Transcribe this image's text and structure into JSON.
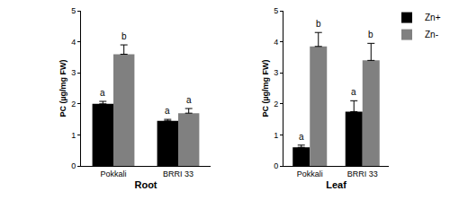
{
  "chart_data": [
    {
      "type": "bar",
      "x_label": "Root",
      "y_label": "PC (µg/mg FW)",
      "categories": [
        "Pokkali",
        "BRRI 33"
      ],
      "series": [
        {
          "name": "Zn+",
          "color": "#000000",
          "values": [
            2.0,
            1.45
          ],
          "errors": [
            0.08,
            0.05
          ],
          "letters": [
            "a",
            "a"
          ]
        },
        {
          "name": "Zn-",
          "color": "#808080",
          "values": [
            3.6,
            1.7
          ],
          "errors": [
            0.3,
            0.15
          ],
          "letters": [
            "b",
            "a"
          ]
        }
      ],
      "ylim": [
        0,
        5
      ],
      "yticks": [
        0,
        1,
        2,
        3,
        4,
        5
      ],
      "grid": false
    },
    {
      "type": "bar",
      "x_label": "Leaf",
      "y_label": "PC (µg/mg FW)",
      "categories": [
        "Pokkali",
        "BRRI 33"
      ],
      "series": [
        {
          "name": "Zn+",
          "color": "#000000",
          "values": [
            0.6,
            1.75
          ],
          "errors": [
            0.07,
            0.35
          ],
          "letters": [
            "a",
            "a"
          ]
        },
        {
          "name": "Zn-",
          "color": "#808080",
          "values": [
            3.85,
            3.4
          ],
          "errors": [
            0.45,
            0.55
          ],
          "letters": [
            "b",
            "b"
          ]
        }
      ],
      "ylim": [
        0,
        5
      ],
      "yticks": [
        0,
        1,
        2,
        3,
        4,
        5
      ],
      "grid": false,
      "legend": "upper right"
    }
  ]
}
